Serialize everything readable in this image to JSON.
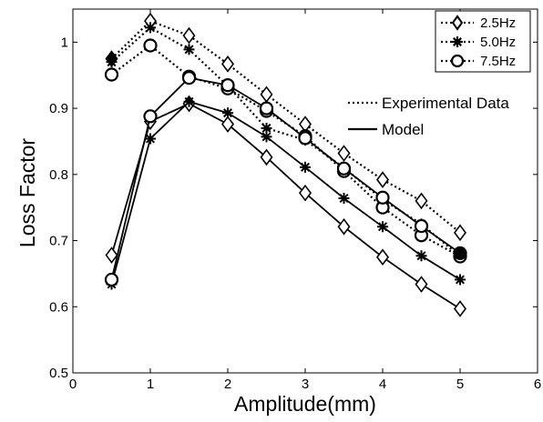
{
  "chart_data": {
    "type": "line",
    "title": "",
    "xlabel": "Amplitude(mm)",
    "ylabel": "Loss Factor",
    "xlim": [
      0,
      6
    ],
    "ylim": [
      0.5,
      1.05
    ],
    "x_ticks": [
      "0",
      "1",
      "2",
      "3",
      "4",
      "5",
      "6"
    ],
    "y_ticks": [
      "0.5",
      "0.6",
      "0.7",
      "0.8",
      "0.9",
      "1"
    ],
    "grid": false,
    "legend": {
      "placement": "top-right",
      "entries": [
        "2.5Hz",
        "5.0Hz",
        "7.5Hz"
      ]
    },
    "style_legend": {
      "experimental": "Experimental Data",
      "model": "Model"
    },
    "series": [
      {
        "name": "2.5Hz",
        "kind": "experimental",
        "marker": "diamond",
        "x": [
          0.5,
          1.0,
          1.5,
          2.0,
          2.5,
          3.0,
          3.5,
          4.0,
          4.5,
          5.0
        ],
        "y": [
          0.975,
          1.032,
          1.01,
          0.967,
          0.921,
          0.876,
          0.832,
          0.792,
          0.76,
          0.712
        ]
      },
      {
        "name": "5.0Hz",
        "kind": "experimental",
        "marker": "asterisk",
        "x": [
          0.5,
          1.0,
          1.5,
          2.0,
          2.5,
          3.0,
          3.5,
          4.0,
          4.5,
          5.0
        ],
        "y": [
          0.97,
          1.022,
          0.989,
          0.934,
          0.87,
          0.852,
          0.81,
          0.762,
          0.725,
          0.676
        ]
      },
      {
        "name": "7.5Hz",
        "kind": "experimental",
        "marker": "circle",
        "x": [
          0.5,
          1.0,
          1.5,
          2.0,
          2.5,
          3.0,
          3.5,
          4.0,
          4.5,
          5.0
        ],
        "y": [
          0.951,
          0.995,
          0.948,
          0.93,
          0.896,
          0.858,
          0.805,
          0.75,
          0.708,
          0.676
        ]
      },
      {
        "name": "2.5Hz",
        "kind": "model",
        "marker": "diamond",
        "x": [
          0.5,
          1.0,
          1.5,
          2.0,
          2.5,
          3.0,
          3.5,
          4.0,
          4.5,
          5.0
        ],
        "y": [
          0.678,
          0.88,
          0.907,
          0.876,
          0.826,
          0.772,
          0.721,
          0.675,
          0.634,
          0.597
        ]
      },
      {
        "name": "5.0Hz",
        "kind": "model",
        "marker": "asterisk",
        "x": [
          0.5,
          1.0,
          1.5,
          2.0,
          2.5,
          3.0,
          3.5,
          4.0,
          4.5,
          5.0
        ],
        "y": [
          0.634,
          0.854,
          0.91,
          0.893,
          0.857,
          0.811,
          0.764,
          0.721,
          0.677,
          0.641
        ]
      },
      {
        "name": "7.5Hz",
        "kind": "model",
        "marker": "circle",
        "x": [
          0.5,
          1.0,
          1.5,
          2.0,
          2.5,
          3.0,
          3.5,
          4.0,
          4.5,
          5.0
        ],
        "y": [
          0.641,
          0.888,
          0.946,
          0.935,
          0.9,
          0.855,
          0.809,
          0.765,
          0.722,
          0.681
        ]
      }
    ]
  }
}
